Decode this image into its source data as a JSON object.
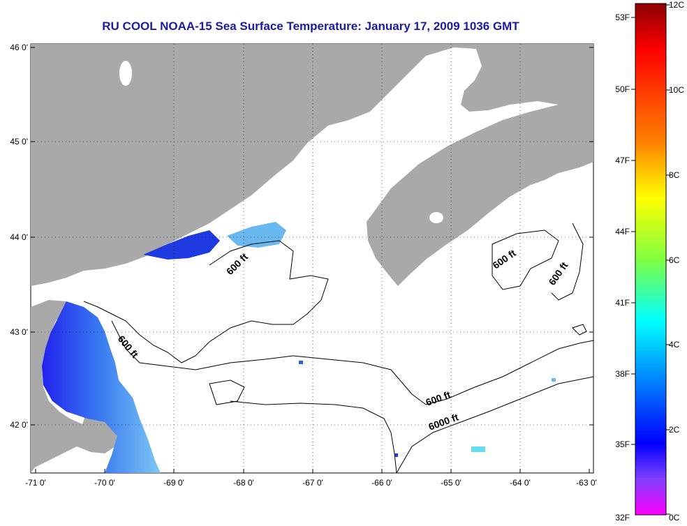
{
  "title": "RU COOL  NOAA-15  Sea Surface Temperature:  January 17, 2009 1036 GMT",
  "lat_labels": [
    "46 0'",
    "45 0'",
    "44 0'",
    "43 0'",
    "42 0'"
  ],
  "lon_labels": [
    "-71 0'",
    "-70 0'",
    "-69 0'",
    "-68 0'",
    "-67 0'",
    "-66 0'",
    "-65 0'",
    "-64 0'",
    "-63 0'"
  ],
  "contour_labels": [
    "600 ft",
    "600 ft",
    "600 ft",
    "600 ft",
    "600 ft",
    "6000 ft"
  ],
  "colorbar": {
    "fahrenheit": [
      "53F",
      "50F",
      "47F",
      "44F",
      "41F",
      "38F",
      "35F",
      "32F"
    ],
    "celsius": [
      "12C",
      "10C",
      "8C",
      "6C",
      "4C",
      "2C",
      "0C"
    ],
    "colors": [
      "#8b0000",
      "#ff0000",
      "#ff8000",
      "#ffff00",
      "#80ff40",
      "#00ffff",
      "#0080ff",
      "#0000ff",
      "#8040ff",
      "#ff00ff"
    ]
  },
  "colors": {
    "land": "#a9a9a9",
    "water_cloud": "#ffffff",
    "title": "#1a1aa8"
  }
}
